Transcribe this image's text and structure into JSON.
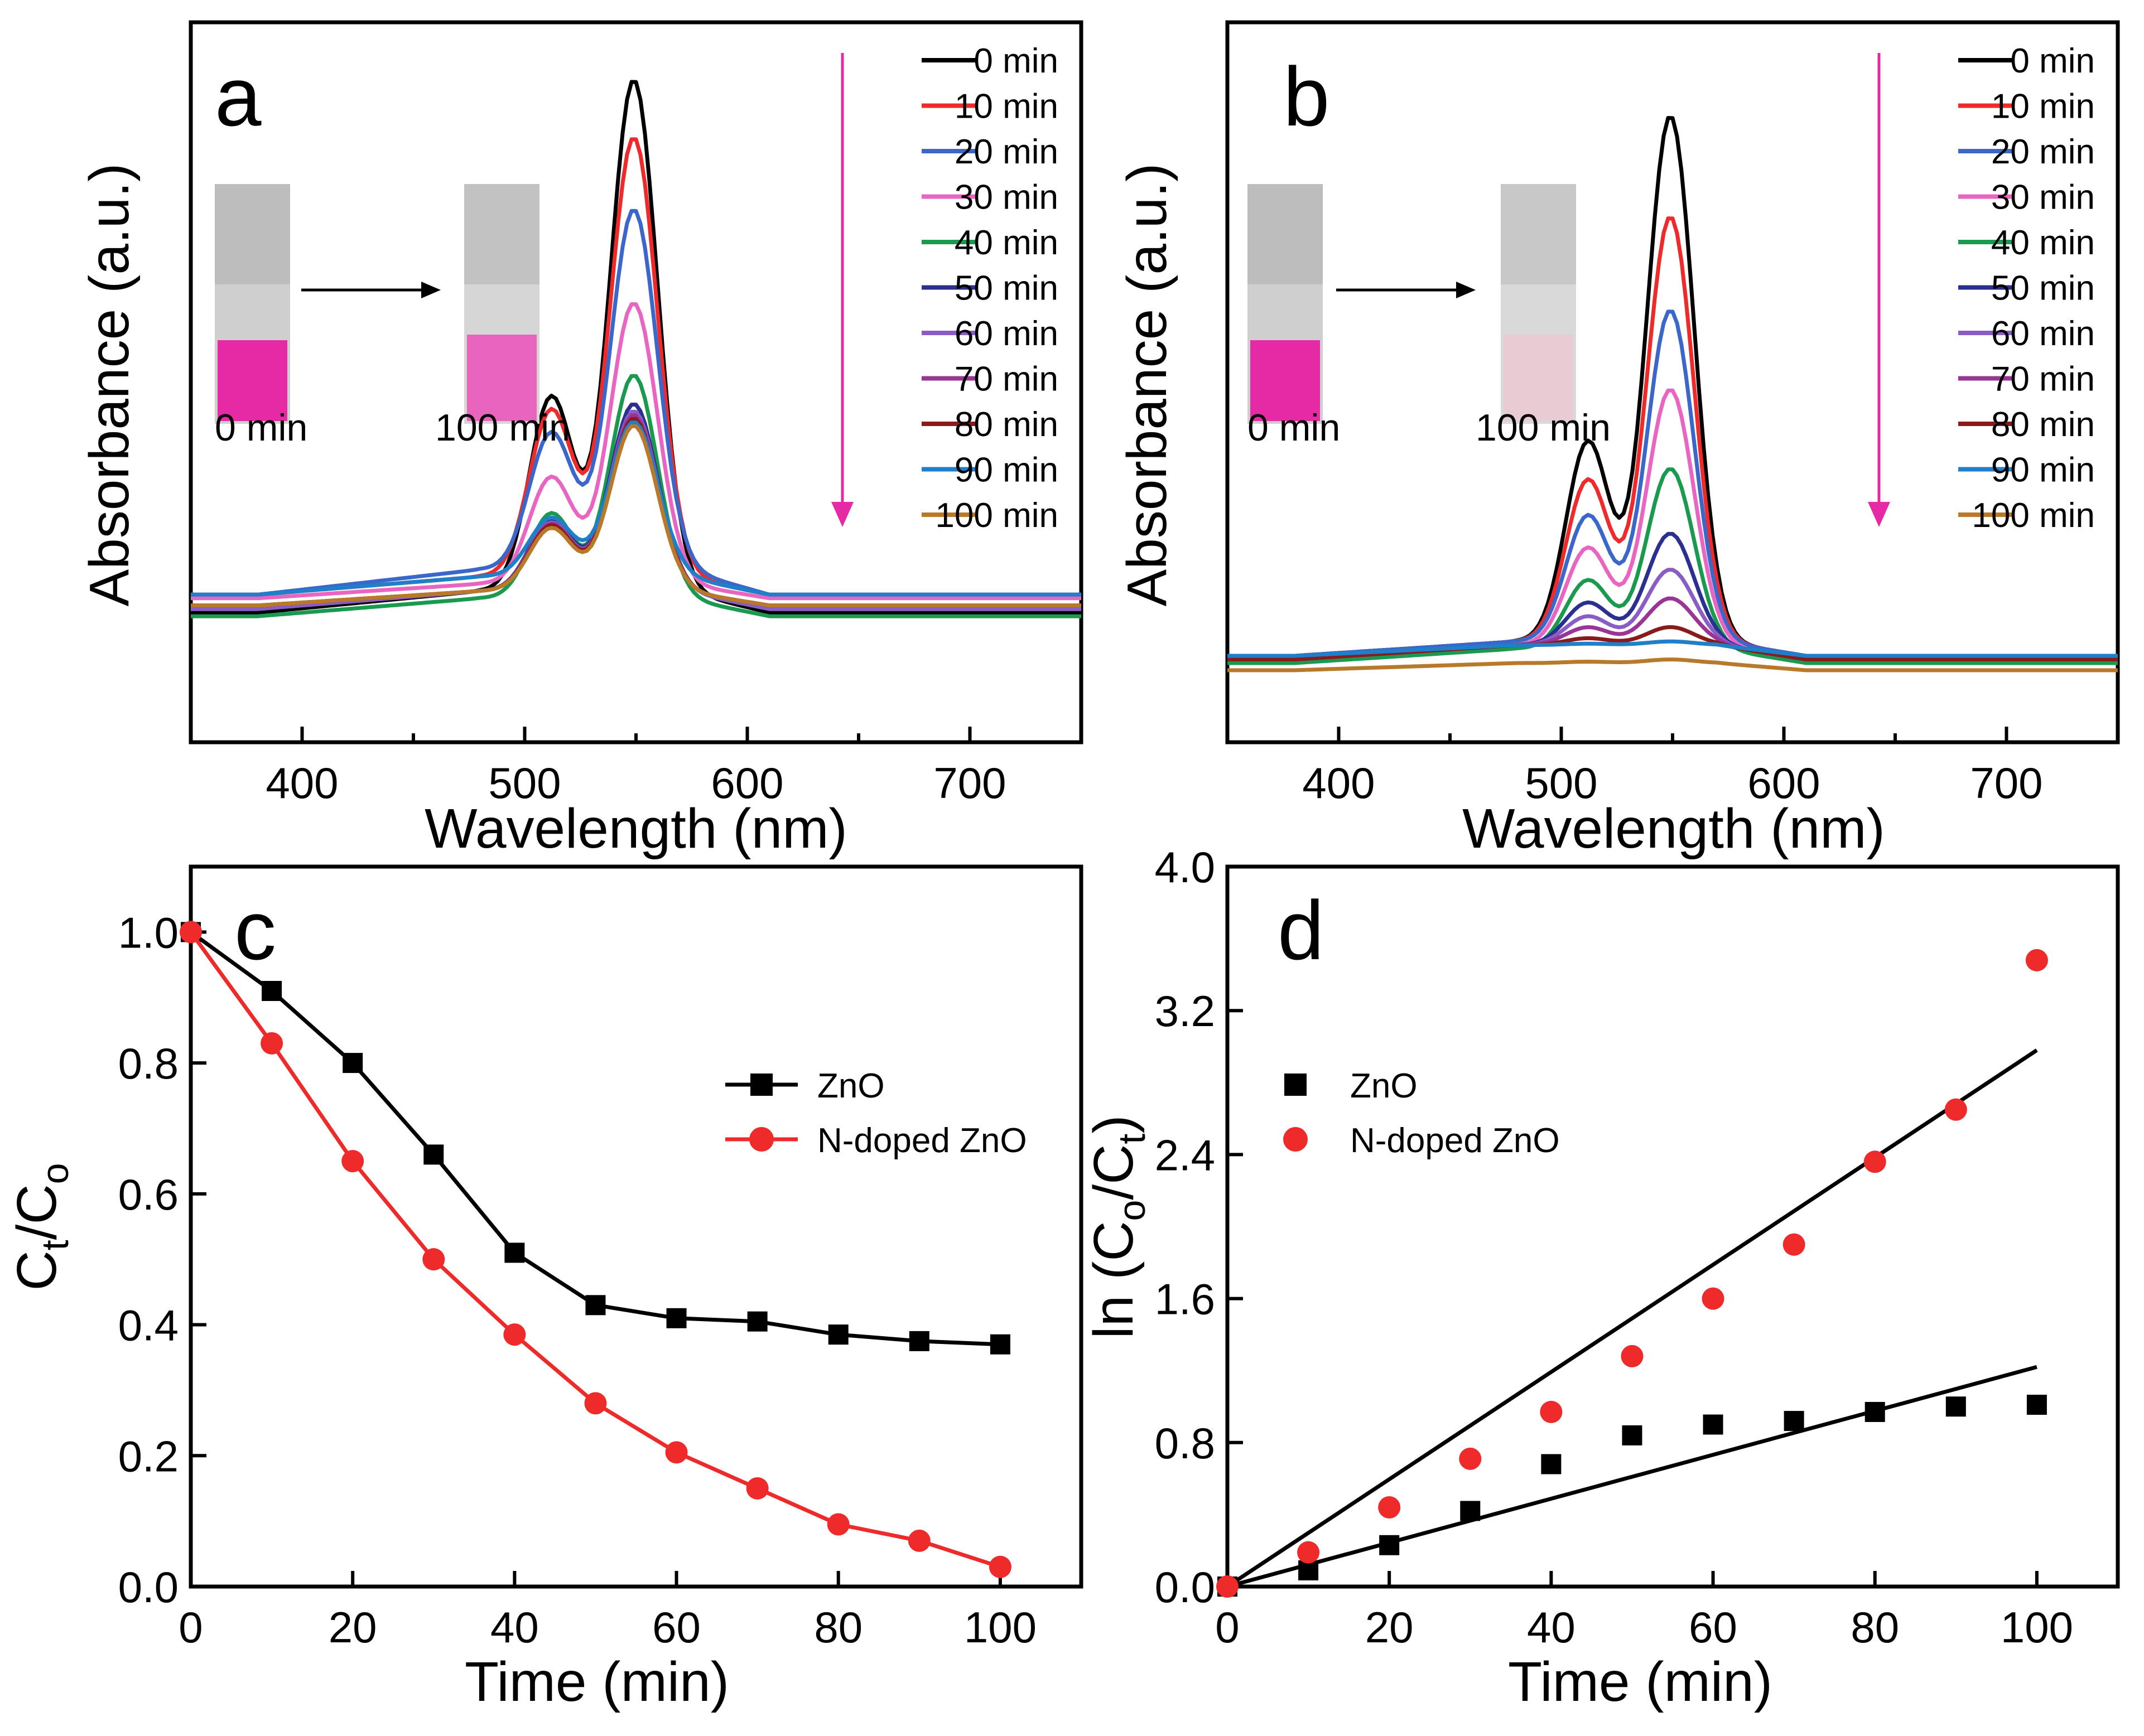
{
  "colors": {
    "0 min": "#000000",
    "10 min": "#ee2a2a",
    "20 min": "#3a67c9",
    "30 min": "#e865c2",
    "40 min": "#1a9a4e",
    "50 min": "#2a2f90",
    "60 min": "#8a5cc6",
    "70 min": "#9a3596",
    "80 min": "#8b1a1a",
    "90 min": "#1f7fc9",
    "100 min": "#b87a2a",
    "zno": "#000000",
    "ndoped": "#ee2a2a",
    "vial_pink": "#e62aa6",
    "arrow_pink": "#e62aa6"
  },
  "chart_data": [
    {
      "panel": "a",
      "type": "line",
      "xlabel": "Wavelength (nm)",
      "ylabel": "Absorbance (a.u.)",
      "xlim": [
        350,
        750
      ],
      "ylim": [
        0,
        1
      ],
      "xticks": [
        400,
        500,
        600,
        700
      ],
      "inset": {
        "before_label": "0 min",
        "after_label": "100 min"
      },
      "series": [
        {
          "name": "0 min",
          "peak": 0.92,
          "baseline": 0.18,
          "plateau": 0.21
        },
        {
          "name": "10 min",
          "peak": 0.84,
          "baseline": 0.205,
          "plateau": 0.23
        },
        {
          "name": "20 min",
          "peak": 0.74,
          "baseline": 0.205,
          "plateau": 0.24
        },
        {
          "name": "30 min",
          "peak": 0.61,
          "baseline": 0.2,
          "plateau": 0.22
        },
        {
          "name": "40 min",
          "peak": 0.51,
          "baseline": 0.175,
          "plateau": 0.2
        },
        {
          "name": "50 min",
          "peak": 0.47,
          "baseline": 0.185,
          "plateau": 0.21
        },
        {
          "name": "60 min",
          "peak": 0.46,
          "baseline": 0.185,
          "plateau": 0.21
        },
        {
          "name": "70 min",
          "peak": 0.455,
          "baseline": 0.19,
          "plateau": 0.21
        },
        {
          "name": "80 min",
          "peak": 0.45,
          "baseline": 0.19,
          "plateau": 0.21
        },
        {
          "name": "90 min",
          "peak": 0.445,
          "baseline": 0.205,
          "plateau": 0.23
        },
        {
          "name": "100 min",
          "peak": 0.44,
          "baseline": 0.19,
          "plateau": 0.21
        }
      ]
    },
    {
      "panel": "b",
      "type": "line",
      "xlabel": "Wavelength (nm)",
      "ylabel": "Absorbance (a.u.)",
      "xlim": [
        350,
        750
      ],
      "ylim": [
        0,
        1
      ],
      "xticks": [
        400,
        500,
        600,
        700
      ],
      "inset": {
        "before_label": "0 min",
        "after_label": "100 min"
      },
      "series": [
        {
          "name": "0 min",
          "peak": 0.87,
          "baseline": 0.12,
          "plateau": 0.14
        },
        {
          "name": "10 min",
          "peak": 0.73,
          "baseline": 0.12,
          "plateau": 0.14
        },
        {
          "name": "20 min",
          "peak": 0.6,
          "baseline": 0.12,
          "plateau": 0.14
        },
        {
          "name": "30 min",
          "peak": 0.49,
          "baseline": 0.115,
          "plateau": 0.135
        },
        {
          "name": "40 min",
          "peak": 0.38,
          "baseline": 0.11,
          "plateau": 0.13
        },
        {
          "name": "50 min",
          "peak": 0.29,
          "baseline": 0.115,
          "plateau": 0.135
        },
        {
          "name": "60 min",
          "peak": 0.24,
          "baseline": 0.115,
          "plateau": 0.135
        },
        {
          "name": "70 min",
          "peak": 0.2,
          "baseline": 0.115,
          "plateau": 0.135
        },
        {
          "name": "80 min",
          "peak": 0.16,
          "baseline": 0.115,
          "plateau": 0.135
        },
        {
          "name": "90 min",
          "peak": 0.14,
          "baseline": 0.12,
          "plateau": 0.135
        },
        {
          "name": "100 min",
          "peak": 0.115,
          "baseline": 0.1,
          "plateau": 0.11
        }
      ]
    },
    {
      "panel": "c",
      "type": "line",
      "xlabel": "Time (min)",
      "ylabel_main": "C",
      "ylabel_sub_t": "t",
      "ylabel_sep": "/C",
      "ylabel_sub_o": "o",
      "xlim": [
        0,
        110
      ],
      "ylim": [
        0,
        1.1
      ],
      "xticks": [
        0,
        20,
        40,
        60,
        80,
        100
      ],
      "yticks": [
        "0.0",
        "0.2",
        "0.4",
        "0.6",
        "0.8",
        "1.0"
      ],
      "x": [
        0,
        10,
        20,
        30,
        40,
        50,
        60,
        70,
        80,
        90,
        100
      ],
      "series": [
        {
          "name": "ZnO",
          "marker": "square",
          "values": [
            1.0,
            0.91,
            0.8,
            0.66,
            0.51,
            0.43,
            0.41,
            0.405,
            0.385,
            0.375,
            0.37
          ]
        },
        {
          "name": "N-doped ZnO",
          "marker": "circle",
          "values": [
            1.0,
            0.83,
            0.65,
            0.5,
            0.385,
            0.28,
            0.205,
            0.15,
            0.095,
            0.07,
            0.03
          ]
        }
      ]
    },
    {
      "panel": "d",
      "type": "scatter",
      "xlabel": "Time (min)",
      "ylabel_pre": "ln (C",
      "ylabel_sub_o": "o",
      "ylabel_sep": "/C",
      "ylabel_sub_t": "t",
      "ylabel_post": ")",
      "xlim": [
        0,
        110
      ],
      "ylim": [
        0,
        4.0
      ],
      "xticks": [
        0,
        20,
        40,
        60,
        80,
        100
      ],
      "yticks": [
        "0.0",
        "0.8",
        "1.6",
        "2.4",
        "3.2",
        "4.0"
      ],
      "x": [
        0,
        10,
        20,
        30,
        40,
        50,
        60,
        70,
        80,
        90,
        100
      ],
      "series": [
        {
          "name": "ZnO",
          "marker": "square",
          "values": [
            0.0,
            0.09,
            0.23,
            0.42,
            0.68,
            0.84,
            0.9,
            0.92,
            0.97,
            1.0,
            1.01
          ],
          "fit_slope": 0.0122
        },
        {
          "name": "N-doped ZnO",
          "marker": "circle",
          "values": [
            0.0,
            0.19,
            0.44,
            0.71,
            0.97,
            1.28,
            1.6,
            1.9,
            2.36,
            2.65,
            3.48
          ],
          "fit_slope": 0.0298
        }
      ]
    }
  ]
}
